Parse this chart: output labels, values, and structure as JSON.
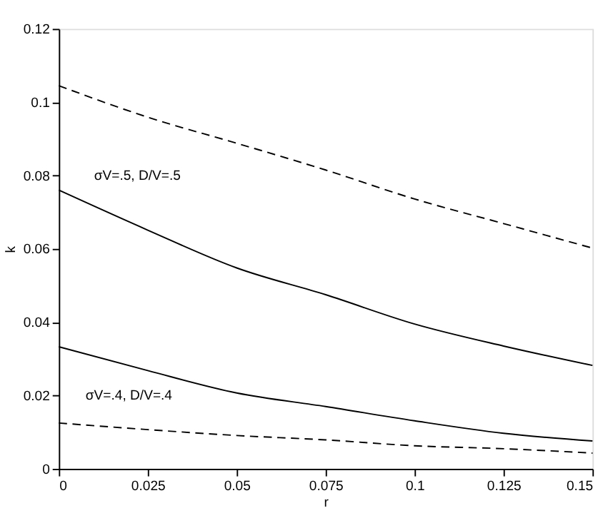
{
  "chart_data": {
    "type": "line",
    "xlabel": "r",
    "ylabel": "k",
    "x": [
      0,
      0.025,
      0.05,
      0.075,
      0.1,
      0.125,
      0.15
    ],
    "series": [
      {
        "color": "#000000",
        "line_style": "dashed",
        "values": [
          0.1045,
          0.0959,
          0.0888,
          0.0815,
          0.0736,
          0.0669,
          0.0602
        ]
      },
      {
        "color": "#000000",
        "line_style": "solid",
        "values": [
          0.076,
          0.0651,
          0.0548,
          0.0475,
          0.0395,
          0.0335,
          0.0282
        ]
      },
      {
        "color": "#000000",
        "line_style": "solid",
        "values": [
          0.0333,
          0.0268,
          0.0207,
          0.017,
          0.0131,
          0.0097,
          0.0076
        ]
      },
      {
        "color": "#000000",
        "line_style": "dashed",
        "values": [
          0.0125,
          0.0107,
          0.0091,
          0.0079,
          0.0063,
          0.0055,
          0.0043
        ]
      }
    ],
    "annotations": [
      "σV=.5, D/V=.5",
      "σV=.4, D/V=.4"
    ],
    "xlim": [
      0,
      0.15
    ],
    "ylim": [
      0,
      0.12
    ],
    "xticks": [
      0,
      0.025,
      0.05,
      0.075,
      0.1,
      0.125,
      0.15
    ],
    "yticks": [
      0,
      0.02,
      0.04,
      0.06,
      0.08,
      0.1,
      0.12
    ],
    "grid": false,
    "marker": "none"
  }
}
